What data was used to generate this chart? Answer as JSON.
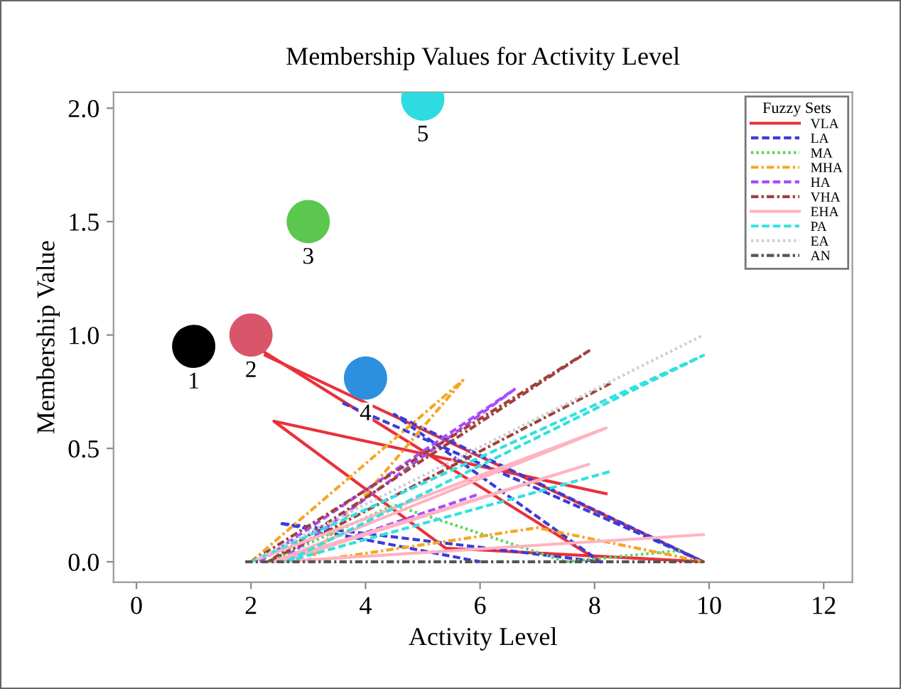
{
  "chart_data": {
    "type": "line",
    "title": "Membership Values for Activity Level",
    "xlabel": "Activity Level",
    "ylabel": "Membership Value",
    "legend_title": "Fuzzy Sets",
    "legend": "top right",
    "grid": false,
    "marker": "none",
    "xlim": [
      -0.4,
      12.5
    ],
    "xticks": [
      0,
      2,
      4,
      6,
      8,
      10,
      12
    ],
    "ylim": [
      -0.09,
      2.07
    ],
    "yticks": [
      {
        "value": 0,
        "label": "0.0"
      },
      {
        "value": 0.5,
        "label": "0.5"
      },
      {
        "value": 1,
        "label": "1.0"
      },
      {
        "value": 1.5,
        "label": "1.5"
      },
      {
        "value": 2,
        "label": "2.0"
      }
    ],
    "series": [
      {
        "name": "VLA",
        "color": "#e8313a",
        "line_style": "solid",
        "x": [
          2.25,
          9.9,
          5.4,
          2.4,
          8.2
        ],
        "values": [
          0.91,
          0,
          0.06,
          0.62,
          0.3
        ]
      },
      {
        "color": "#e8313a",
        "line_style": "solid",
        "x": [
          2.2,
          8.1
        ],
        "values": [
          0.93,
          0
        ]
      },
      {
        "name": "LA",
        "color": "#3b3bd9",
        "line_style": "dashed",
        "x": [
          3.6,
          9.9,
          4.5,
          8.1,
          2.5,
          6.0
        ],
        "values": [
          0.7,
          0,
          0.65,
          0,
          0.17,
          0
        ]
      },
      {
        "name": "MA",
        "color": "#5fd35f",
        "line_style": "dotted",
        "x": [
          2.3,
          4.5,
          7.5,
          9.5
        ],
        "values": [
          0,
          0.25,
          0,
          0.05
        ]
      },
      {
        "name": "MHA",
        "color": "#f5a623",
        "line_style": "dashdot",
        "x": [
          2.0,
          5.7,
          3.0,
          7.0,
          9.9
        ],
        "values": [
          0,
          0.8,
          0,
          0.15,
          0
        ]
      },
      {
        "name": "HA",
        "color": "#a64dff",
        "line_style": "dashed",
        "x": [
          2.15,
          6.6,
          2.5,
          6.0
        ],
        "values": [
          0,
          0.76,
          0,
          0.3
        ]
      },
      {
        "name": "VHA",
        "color": "#a0413c",
        "line_style": "dashdot",
        "x": [
          2.0,
          7.9,
          2.3,
          8.3
        ],
        "values": [
          0,
          0.93,
          0,
          0.79
        ]
      },
      {
        "name": "EHA",
        "color": "#ffb3c1",
        "line_style": "solid",
        "x": [
          2.0,
          8.2,
          2.4,
          7.9,
          2.5,
          9.9
        ],
        "values": [
          0,
          0.59,
          0,
          0.43,
          0,
          0.12
        ]
      },
      {
        "name": "PA",
        "color": "#33e0e0",
        "line_style": "dashed",
        "x": [
          2.0,
          9.9,
          2.6,
          8.3
        ],
        "values": [
          0,
          0.91,
          0,
          0.4
        ]
      },
      {
        "name": "EA",
        "color": "#c8d0d8",
        "line_style": "dotted",
        "x": [
          2.0,
          9.9
        ],
        "values": [
          0,
          1.0
        ]
      },
      {
        "name": "AN",
        "color": "#555555",
        "line_style": "dashdot",
        "x": [
          1.9,
          9.9
        ],
        "values": [
          0,
          0
        ]
      },
      {
        "type": "scatter",
        "marker": "circle",
        "x": [
          1.0,
          2.0,
          3.0,
          4.0,
          5.0
        ],
        "values": [
          0.95,
          1.0,
          1.5,
          0.81,
          2.04
        ],
        "colors": [
          "#000000",
          "#d9566a",
          "#5cc74f",
          "#2d8fe0",
          "#2ddbe0"
        ]
      }
    ],
    "annotations": [
      {
        "text": "1",
        "x": 1.0,
        "y": 0.95
      },
      {
        "text": "2",
        "x": 2.0,
        "y": 1.0
      },
      {
        "text": "3",
        "x": 3.0,
        "y": 1.5
      },
      {
        "text": "4",
        "x": 4.0,
        "y": 0.81
      },
      {
        "text": "5",
        "x": 5.0,
        "y": 2.04
      }
    ]
  }
}
